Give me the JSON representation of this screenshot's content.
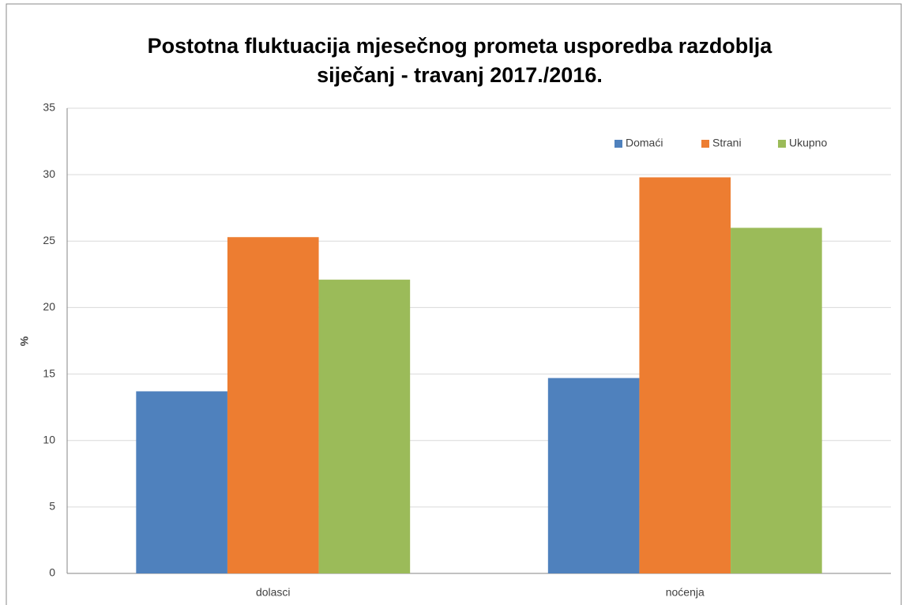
{
  "chart_data": {
    "type": "bar",
    "title": [
      "Postotna fluktuacija mjesečnog prometa usporedba razdoblja",
      "siječanj - travanj 2017./2016."
    ],
    "y_label": "%",
    "categories": [
      "dolasci",
      "noćenja"
    ],
    "series": [
      {
        "name": "Domaći",
        "color": "#4f81bd",
        "values": [
          13.7,
          14.7
        ]
      },
      {
        "name": "Strani",
        "color": "#ed7d31",
        "values": [
          25.3,
          29.8
        ]
      },
      {
        "name": "Ukupno",
        "color": "#9bbb59",
        "values": [
          22.1,
          26.0
        ]
      }
    ],
    "ylim": [
      0,
      35
    ],
    "yticks": [
      0,
      5,
      10,
      15,
      20,
      25,
      30,
      35
    ],
    "grid": true,
    "legend": "top-right"
  }
}
